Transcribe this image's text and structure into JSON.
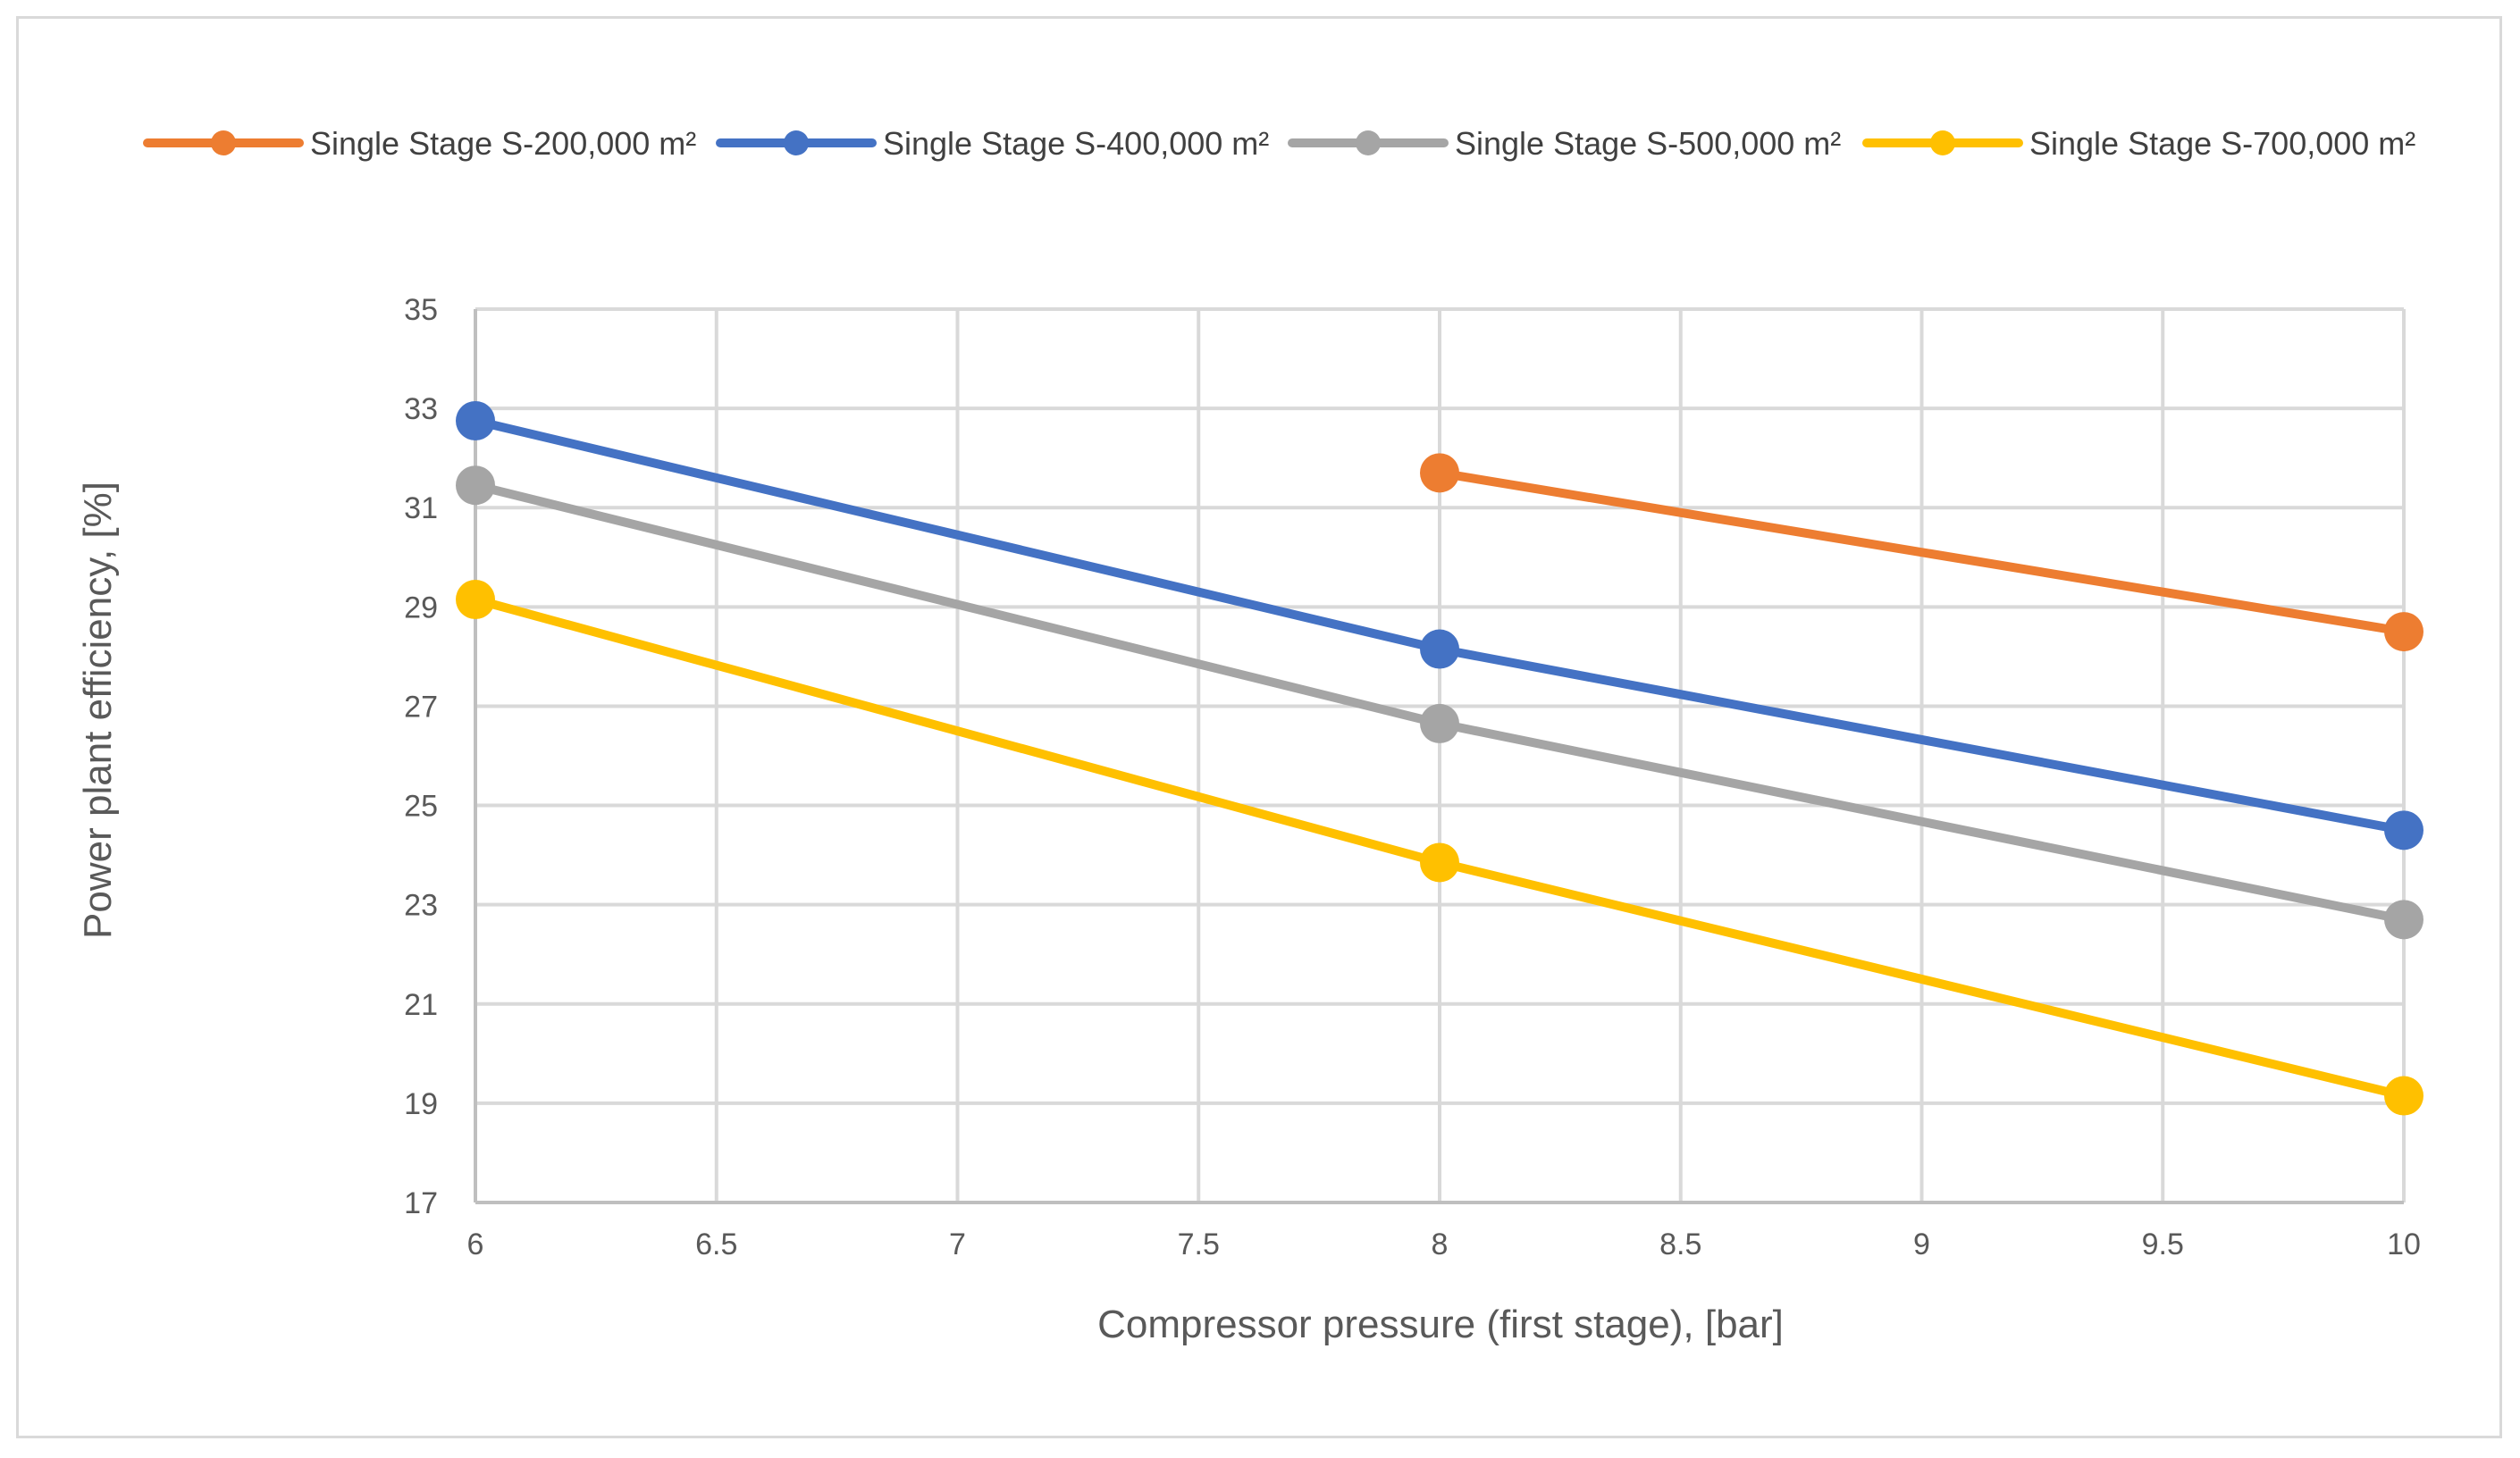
{
  "chart_data": {
    "type": "line",
    "title": "",
    "xlabel": "Compressor pressure (first stage), [bar]",
    "ylabel": "Power plant efficiency, [%]",
    "xlim": [
      6,
      10
    ],
    "ylim": [
      17,
      35
    ],
    "x_ticks": [
      "6",
      "6.5",
      "7",
      "7.5",
      "8",
      "8.5",
      "9",
      "9.5",
      "10"
    ],
    "y_ticks": [
      "35",
      "33",
      "31",
      "29",
      "27",
      "25",
      "23",
      "21",
      "19",
      "17"
    ],
    "grid": true,
    "legend_position": "top",
    "series": [
      {
        "name": "Single Stage S-200,000 m²",
        "color": "#ED7D31",
        "x": [
          8,
          10
        ],
        "values": [
          31.7,
          28.5
        ]
      },
      {
        "name": "Single Stage S-400,000 m²",
        "color": "#4472C4",
        "x": [
          6,
          8,
          10
        ],
        "values": [
          32.75,
          28.15,
          24.5
        ]
      },
      {
        "name": "Single Stage S-500,000 m²",
        "color": "#A5A5A5",
        "x": [
          6,
          8,
          10
        ],
        "values": [
          31.45,
          26.65,
          22.7
        ]
      },
      {
        "name": "Single Stage S-700,000 m²",
        "color": "#FFC000",
        "x": [
          6,
          8,
          10
        ],
        "values": [
          29.15,
          23.85,
          19.15
        ]
      }
    ]
  }
}
